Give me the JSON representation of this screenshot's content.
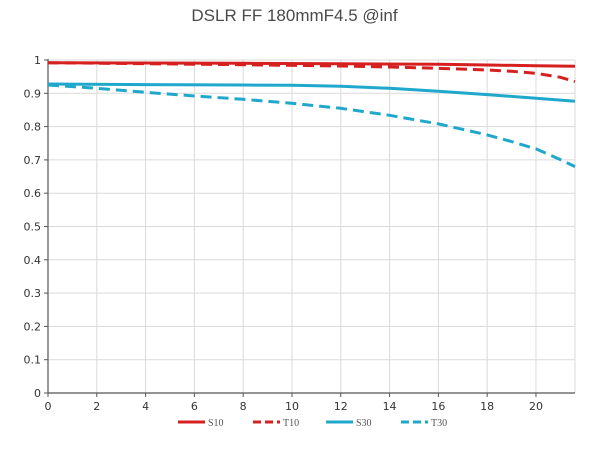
{
  "chart_data": {
    "type": "line",
    "title": "DSLR FF 180mmF4.5 @inf",
    "xlabel": "",
    "ylabel": "",
    "xlim": [
      0,
      21.6
    ],
    "ylim": [
      0,
      1
    ],
    "xticks": [
      0,
      2,
      4,
      6,
      8,
      10,
      12,
      14,
      16,
      18,
      20
    ],
    "yticks": [
      0,
      0.1,
      0.2,
      0.3,
      0.4,
      0.5,
      0.6,
      0.7,
      0.8,
      0.9,
      1
    ],
    "xtick_labels": [
      "0",
      "2",
      "4",
      "6",
      "8",
      "10",
      "12",
      "14",
      "16",
      "18",
      "20"
    ],
    "ytick_labels": [
      "0",
      "0.1",
      "0.2",
      "0.3",
      "0.4",
      "0.5",
      "0.6",
      "0.7",
      "0.8",
      "0.9",
      "1"
    ],
    "grid": true,
    "legend_position": "bottom",
    "series": [
      {
        "name": "S10",
        "color": "#d62020",
        "dash": "solid",
        "x": [
          0,
          4,
          8,
          12,
          16,
          18,
          20,
          21.6
        ],
        "y": [
          0.992,
          0.991,
          0.99,
          0.989,
          0.987,
          0.985,
          0.983,
          0.981
        ]
      },
      {
        "name": "T10",
        "color": "#d62020",
        "dash": "dashed",
        "x": [
          0,
          4,
          8,
          12,
          14,
          16,
          18,
          19,
          20,
          21,
          21.6
        ],
        "y": [
          0.992,
          0.989,
          0.986,
          0.982,
          0.979,
          0.975,
          0.97,
          0.966,
          0.96,
          0.948,
          0.935
        ]
      },
      {
        "name": "S30",
        "color": "#1fa8cc",
        "dash": "solid",
        "x": [
          0,
          4,
          8,
          10,
          12,
          14,
          16,
          18,
          20,
          21.6
        ],
        "y": [
          0.928,
          0.926,
          0.925,
          0.924,
          0.921,
          0.915,
          0.906,
          0.896,
          0.885,
          0.876
        ]
      },
      {
        "name": "T30",
        "color": "#1fa8cc",
        "dash": "dashed",
        "x": [
          0,
          2,
          4,
          6,
          8,
          10,
          12,
          14,
          16,
          18,
          19,
          20,
          21,
          21.6
        ],
        "y": [
          0.925,
          0.915,
          0.903,
          0.892,
          0.882,
          0.87,
          0.855,
          0.834,
          0.808,
          0.775,
          0.755,
          0.733,
          0.701,
          0.68
        ]
      }
    ]
  }
}
